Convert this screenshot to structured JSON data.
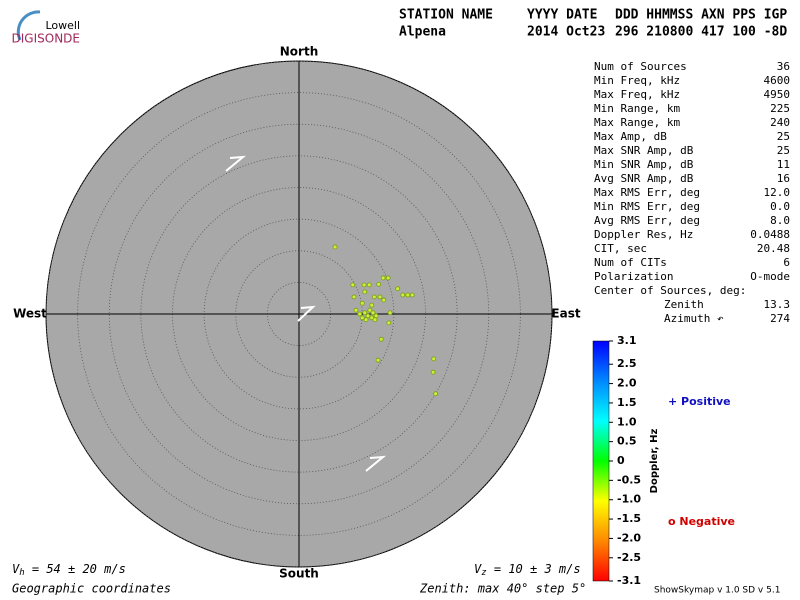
{
  "logo": {
    "top": "Lowell",
    "bottom": "DIGISONDE"
  },
  "header": {
    "columns": [
      {
        "label": "STATION NAME",
        "value": "Alpena"
      },
      {
        "label": "YYYY DATE",
        "value": "2014 Oct23"
      },
      {
        "label": "DDD HHMMSS AXN PPS IGP",
        "value": "296 210800 417 100 -8D"
      }
    ]
  },
  "chart_data": {
    "type": "skymap",
    "directions": {
      "north": "North",
      "south": "South",
      "east": "East",
      "west": "West"
    },
    "xlim": [
      -40,
      40
    ],
    "ylim": [
      -40,
      40
    ],
    "rings": [
      5,
      10,
      15,
      20,
      25,
      30,
      35,
      40
    ],
    "color": "#c8f03c",
    "x": [
      5.7,
      13.3,
      14.1,
      12.6,
      8.5,
      10.3,
      11.1,
      15.6,
      10.4,
      16.4,
      17.2,
      17.9,
      8.7,
      11.9,
      12.8,
      13.4,
      10.0,
      11.5,
      9.0,
      11.2,
      10.4,
      11.7,
      10.9,
      12.2,
      14.4,
      10.0,
      11.5,
      14.2,
      10.6,
      13.0,
      12.5,
      21.3,
      21.2,
      21.6,
      9.6,
      12.0
    ],
    "y": [
      10.6,
      5.7,
      5.7,
      4.7,
      4.6,
      4.6,
      4.6,
      4.0,
      3.5,
      3.0,
      3.0,
      3.0,
      2.7,
      2.7,
      2.7,
      2.2,
      1.7,
      1.4,
      0.6,
      0.6,
      0.2,
      0.2,
      -0.3,
      -0.3,
      0.2,
      -0.6,
      -0.6,
      -1.4,
      -0.9,
      -4.0,
      -7.3,
      -7.1,
      -9.2,
      -12.6,
      0.0,
      -0.9
    ],
    "colorbar": {
      "title": "Doppler, Hz",
      "lim": [
        -3.1,
        3.1
      ],
      "ticks": [
        3.1,
        2.5,
        {
          "value": 2.0,
          "label": "2.0"
        },
        1.5,
        {
          "value": 1.0,
          "label": "1.0"
        },
        0.5,
        0,
        -0.5,
        {
          "value": -1.0,
          "label": "-1.0"
        },
        -1.5,
        {
          "value": -2.0,
          "label": "-2.0"
        },
        -2.5,
        -3.1
      ],
      "colors": [
        "#ff0000",
        "#ff8800",
        "#ffff00",
        "#00ff00",
        "#00ffff",
        "#0088ff",
        "#0000ff"
      ]
    },
    "legend": {
      "positive": "+ Positive",
      "negative": "o Negative"
    }
  },
  "stats": [
    [
      "Num of Sources",
      "36"
    ],
    [
      "Min Freq, kHz",
      "4600"
    ],
    [
      "Max Freq, kHz",
      "4950"
    ],
    [
      "Min Range, km",
      "225"
    ],
    [
      "Max Range, km",
      "240"
    ],
    [
      "Max Amp, dB",
      "25"
    ],
    [
      "Max SNR Amp, dB",
      "25"
    ],
    [
      "Min SNR Amp, dB",
      "11"
    ],
    [
      "Avg SNR Amp, dB",
      "16"
    ],
    [
      "Max RMS Err, deg",
      "12.0"
    ],
    [
      "Min RMS Err, deg",
      "0.0"
    ],
    [
      "Avg RMS Err, deg",
      "8.0"
    ],
    [
      "Doppler Res, Hz",
      "0.0488"
    ],
    [
      "CIT, sec",
      "20.48"
    ],
    [
      "Num of CITs",
      "6"
    ],
    [
      "Polarization",
      "O-mode"
    ]
  ],
  "center": {
    "title": "Center of Sources, deg:",
    "rows": [
      [
        "Zenith",
        "13.3"
      ],
      [
        "Azimuth ↶",
        "274"
      ]
    ]
  },
  "footer": {
    "vh": {
      "symbol": "V",
      "sub": "h",
      "text": " = 54 ± 20 m/s"
    },
    "vz": {
      "symbol": "V",
      "sub": "z",
      "text": " = 10 ± 3 m/s"
    },
    "coords": "Geographic coordinates",
    "zenith": "Zenith: max 40°  step 5°",
    "version": "ShowSkymap v 1.0   SD v 5.1"
  }
}
